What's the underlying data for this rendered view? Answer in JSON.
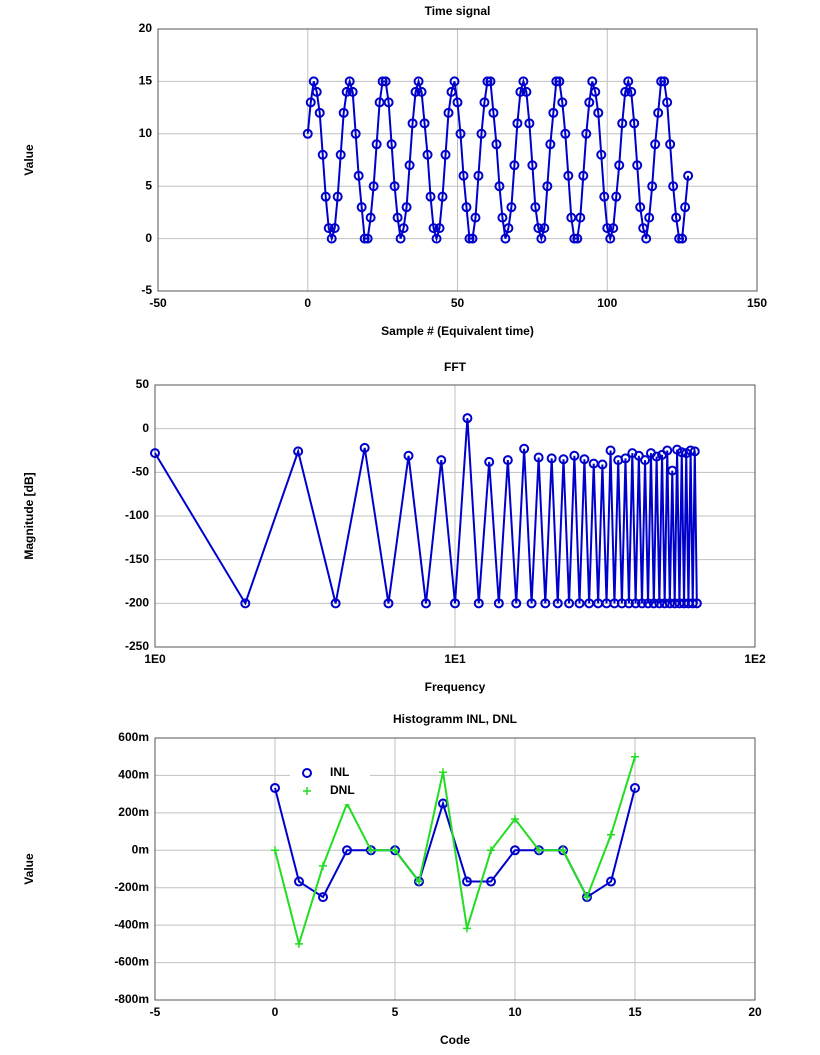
{
  "chart_data": [
    {
      "type": "line",
      "title": "Time signal",
      "xlabel": "Sample # (Equivalent time)",
      "ylabel": "Value",
      "x": [
        0,
        1,
        2,
        3,
        4,
        5,
        6,
        7,
        8,
        9,
        10,
        11,
        12,
        13,
        14,
        15,
        16,
        17,
        18,
        19,
        20,
        21,
        22,
        23,
        24,
        25,
        26,
        27,
        28,
        29,
        30,
        31,
        32,
        33,
        34,
        35,
        36,
        37,
        38,
        39,
        40,
        41,
        42,
        43,
        44,
        45,
        46,
        47,
        48,
        49,
        50,
        51,
        52,
        53,
        54,
        55,
        56,
        57,
        58,
        59,
        60,
        61,
        62,
        63,
        64,
        65,
        66,
        67,
        68,
        69,
        70,
        71,
        72,
        73,
        74,
        75,
        76,
        77,
        78,
        79,
        80,
        81,
        82,
        83,
        84,
        85,
        86,
        87,
        88,
        89,
        90,
        91,
        92,
        93,
        94,
        95,
        96,
        97,
        98,
        99,
        100,
        101,
        102,
        103,
        104,
        105,
        106,
        107,
        108,
        109,
        110,
        111,
        112,
        113,
        114,
        115,
        116,
        117,
        118,
        119,
        120,
        121,
        122,
        123,
        124,
        125,
        126,
        127
      ],
      "values": [
        10,
        13,
        15,
        14,
        12,
        8,
        4,
        1,
        0,
        1,
        4,
        8,
        12,
        14,
        15,
        14,
        10,
        6,
        3,
        0,
        0,
        2,
        5,
        9,
        13,
        15,
        15,
        13,
        9,
        5,
        2,
        0,
        1,
        3,
        7,
        11,
        14,
        15,
        14,
        11,
        8,
        4,
        1,
        0,
        1,
        4,
        8,
        12,
        14,
        15,
        13,
        10,
        6,
        3,
        0,
        0,
        2,
        6,
        10,
        13,
        15,
        15,
        12,
        9,
        5,
        2,
        0,
        1,
        3,
        7,
        11,
        14,
        15,
        14,
        11,
        7,
        3,
        1,
        0,
        1,
        5,
        9,
        12,
        15,
        15,
        13,
        10,
        6,
        2,
        0,
        0,
        2,
        6,
        10,
        13,
        15,
        14,
        12,
        8,
        4,
        1,
        0,
        1,
        4,
        7,
        11,
        14,
        15,
        14,
        11,
        7,
        3,
        1,
        0,
        2,
        5,
        9,
        12,
        15,
        15,
        13,
        9,
        5,
        2,
        0,
        0,
        3,
        6
      ],
      "color": "#0000cc",
      "marker": "circle",
      "xlim": [
        -50,
        150
      ],
      "xticks": [
        -50,
        0,
        50,
        100,
        150
      ],
      "ylim": [
        -5,
        20
      ],
      "yticks": [
        -5,
        0,
        5,
        10,
        15,
        20
      ],
      "grid": true
    },
    {
      "type": "line",
      "title": "FFT",
      "xlabel": "Frequency",
      "ylabel": "Magnitude [dB]",
      "xlog": true,
      "x": [
        1,
        2,
        3,
        4,
        5,
        6,
        7,
        8,
        9,
        10,
        11,
        12,
        13,
        14,
        15,
        16,
        17,
        18,
        19,
        20,
        21,
        22,
        23,
        24,
        25,
        26,
        27,
        28,
        29,
        30,
        31,
        32,
        33,
        34,
        35,
        36,
        37,
        38,
        39,
        40,
        41,
        42,
        43,
        44,
        45,
        46,
        47,
        48,
        49,
        50,
        51,
        52,
        53,
        54,
        55,
        56,
        57,
        58,
        59,
        60,
        61,
        62,
        63,
        64
      ],
      "values": [
        -28,
        -200,
        -26,
        -200,
        -22,
        -200,
        -31,
        -200,
        -36,
        -200,
        12,
        -200,
        -38,
        -200,
        -36,
        -200,
        -23,
        -200,
        -33,
        -200,
        -34,
        -200,
        -35,
        -200,
        -31,
        -200,
        -35,
        -200,
        -40,
        -200,
        -41,
        -200,
        -25,
        -200,
        -36,
        -200,
        -34,
        -200,
        -28,
        -200,
        -31,
        -200,
        -36,
        -200,
        -28,
        -200,
        -32,
        -200,
        -30,
        -200,
        -25,
        -200,
        -48,
        -200,
        -24,
        -200,
        -27,
        -200,
        -28,
        -200,
        -25,
        -200,
        -26,
        -200
      ],
      "color": "#0000cc",
      "marker": "circle",
      "xlim": [
        1,
        100
      ],
      "xticks": [
        {
          "value": 1,
          "label": "1E0"
        },
        {
          "value": 10,
          "label": "1E1"
        },
        {
          "value": 100,
          "label": "1E2"
        }
      ],
      "ylim": [
        -250,
        50
      ],
      "yticks": [
        -250,
        -200,
        -150,
        -100,
        -50,
        0,
        50
      ],
      "grid": true
    },
    {
      "type": "line",
      "title": "Histogramm INL, DNL",
      "xlabel": "Code",
      "ylabel": "Value",
      "legend": "upper left",
      "x": [
        0,
        1,
        2,
        3,
        4,
        5,
        6,
        7,
        8,
        9,
        10,
        11,
        12,
        13,
        14,
        15
      ],
      "series": [
        {
          "name": "INL",
          "color": "#0000cc",
          "marker": "circle",
          "values": [
            0.333,
            -0.167,
            -0.25,
            0,
            0,
            0,
            -0.167,
            0.25,
            -0.167,
            -0.167,
            0,
            0,
            0,
            -0.25,
            -0.167,
            0.333
          ]
        },
        {
          "name": "DNL",
          "color": "#22dd22",
          "marker": "plus",
          "values": [
            0,
            -0.5,
            -0.083,
            0.25,
            0,
            0,
            -0.167,
            0.417,
            -0.417,
            0,
            0.167,
            0,
            0,
            -0.25,
            0.083,
            0.5
          ]
        }
      ],
      "xlim": [
        -5,
        20
      ],
      "xticks": [
        -5,
        0,
        5,
        10,
        15,
        20
      ],
      "ylim": [
        -0.8,
        0.6
      ],
      "yticks": [
        {
          "value": -0.8,
          "label": "-800m"
        },
        {
          "value": -0.6,
          "label": "-600m"
        },
        {
          "value": -0.4,
          "label": "-400m"
        },
        {
          "value": -0.2,
          "label": "-200m"
        },
        {
          "value": 0,
          "label": "0m"
        },
        {
          "value": 0.2,
          "label": "200m"
        },
        {
          "value": 0.4,
          "label": "400m"
        },
        {
          "value": 0.6,
          "label": "600m"
        }
      ],
      "grid": true
    }
  ]
}
